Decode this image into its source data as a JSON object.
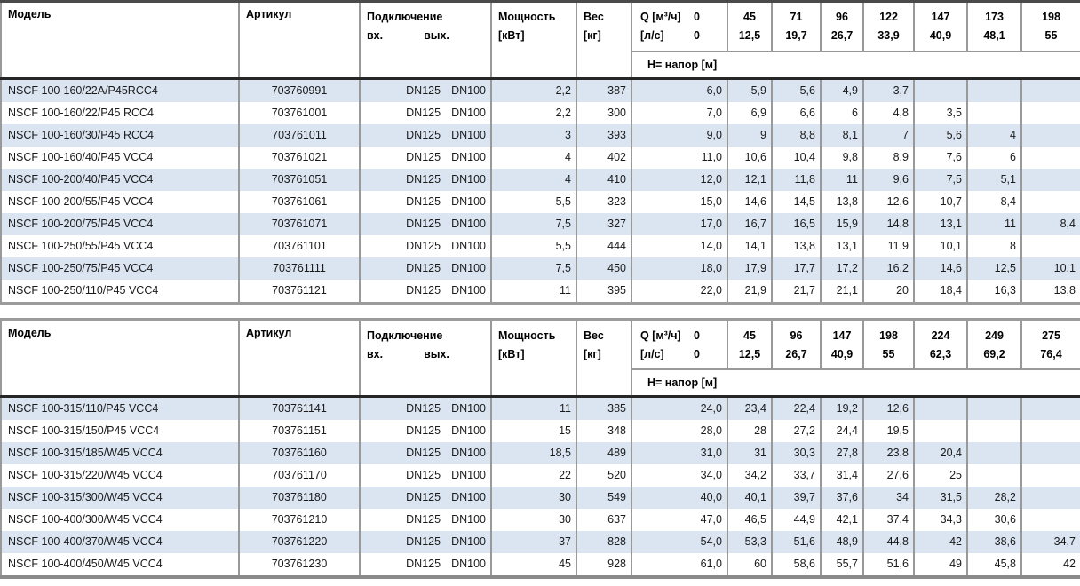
{
  "colors": {
    "row_stripe": "#dbe5f1",
    "grid_line": "#999999",
    "header_separator": "#262626",
    "table_frame": "#9b9b9b",
    "text": "#1a1a1a"
  },
  "tables": [
    {
      "headers": {
        "model": "Модель",
        "article": "Артикул",
        "connection": "Подключение",
        "conn_in": "вх.",
        "conn_out": "вых.",
        "power_line1": "Мощность",
        "power_line2": "[кВт]",
        "weight_line1": "Вес",
        "weight_line2": "[кг]",
        "q_row1_label": "Q [м³/ч]",
        "q_row1_value": "0",
        "q_row2_label": "[л/с]",
        "q_row2_value": "0",
        "head_label": "H= напор [м]",
        "flow_points": [
          {
            "m3h": "45",
            "ls": "12,5"
          },
          {
            "m3h": "71",
            "ls": "19,7"
          },
          {
            "m3h": "96",
            "ls": "26,7"
          },
          {
            "m3h": "122",
            "ls": "33,9"
          },
          {
            "m3h": "147",
            "ls": "40,9"
          },
          {
            "m3h": "173",
            "ls": "48,1"
          },
          {
            "m3h": "198",
            "ls": "55"
          }
        ]
      },
      "rows": [
        {
          "model": "NSCF 100-160/22A/P45RCC4",
          "article": "703760991",
          "inlet": "DN125",
          "outlet": "DN100",
          "power": "2,2",
          "weight": "387",
          "head": [
            "6,0",
            "5,9",
            "5,6",
            "4,9",
            "3,7",
            "",
            "",
            ""
          ]
        },
        {
          "model": "NSCF 100-160/22/P45 RCC4",
          "article": "703761001",
          "inlet": "DN125",
          "outlet": "DN100",
          "power": "2,2",
          "weight": "300",
          "head": [
            "7,0",
            "6,9",
            "6,6",
            "6",
            "4,8",
            "3,5",
            "",
            ""
          ]
        },
        {
          "model": "NSCF 100-160/30/P45 RCC4",
          "article": "703761011",
          "inlet": "DN125",
          "outlet": "DN100",
          "power": "3",
          "weight": "393",
          "head": [
            "9,0",
            "9",
            "8,8",
            "8,1",
            "7",
            "5,6",
            "4",
            ""
          ]
        },
        {
          "model": "NSCF 100-160/40/P45 VCC4",
          "article": "703761021",
          "inlet": "DN125",
          "outlet": "DN100",
          "power": "4",
          "weight": "402",
          "head": [
            "11,0",
            "10,6",
            "10,4",
            "9,8",
            "8,9",
            "7,6",
            "6",
            ""
          ]
        },
        {
          "model": "NSCF 100-200/40/P45 VCC4",
          "article": "703761051",
          "inlet": "DN125",
          "outlet": "DN100",
          "power": "4",
          "weight": "410",
          "head": [
            "12,0",
            "12,1",
            "11,8",
            "11",
            "9,6",
            "7,5",
            "5,1",
            ""
          ]
        },
        {
          "model": "NSCF 100-200/55/P45 VCC4",
          "article": "703761061",
          "inlet": "DN125",
          "outlet": "DN100",
          "power": "5,5",
          "weight": "323",
          "head": [
            "15,0",
            "14,6",
            "14,5",
            "13,8",
            "12,6",
            "10,7",
            "8,4",
            ""
          ]
        },
        {
          "model": "NSCF 100-200/75/P45 VCC4",
          "article": "703761071",
          "inlet": "DN125",
          "outlet": "DN100",
          "power": "7,5",
          "weight": "327",
          "head": [
            "17,0",
            "16,7",
            "16,5",
            "15,9",
            "14,8",
            "13,1",
            "11",
            "8,4"
          ]
        },
        {
          "model": "NSCF 100-250/55/P45 VCC4",
          "article": "703761101",
          "inlet": "DN125",
          "outlet": "DN100",
          "power": "5,5",
          "weight": "444",
          "head": [
            "14,0",
            "14,1",
            "13,8",
            "13,1",
            "11,9",
            "10,1",
            "8",
            ""
          ]
        },
        {
          "model": "NSCF 100-250/75/P45 VCC4",
          "article": "703761111",
          "inlet": "DN125",
          "outlet": "DN100",
          "power": "7,5",
          "weight": "450",
          "head": [
            "18,0",
            "17,9",
            "17,7",
            "17,2",
            "16,2",
            "14,6",
            "12,5",
            "10,1"
          ]
        },
        {
          "model": "NSCF 100-250/110/P45 VCC4",
          "article": "703761121",
          "inlet": "DN125",
          "outlet": "DN100",
          "power": "11",
          "weight": "395",
          "head": [
            "22,0",
            "21,9",
            "21,7",
            "21,1",
            "20",
            "18,4",
            "16,3",
            "13,8"
          ]
        }
      ]
    },
    {
      "headers": {
        "model": "Модель",
        "article": "Артикул",
        "connection": "Подключение",
        "conn_in": "вх.",
        "conn_out": "вых.",
        "power_line1": "Мощность",
        "power_line2": "[кВт]",
        "weight_line1": "Вес",
        "weight_line2": "[кг]",
        "q_row1_label": "Q [м³/ч]",
        "q_row1_value": "0",
        "q_row2_label": "[л/с]",
        "q_row2_value": "0",
        "head_label": "H= напор [м]",
        "flow_points": [
          {
            "m3h": "45",
            "ls": "12,5"
          },
          {
            "m3h": "96",
            "ls": "26,7"
          },
          {
            "m3h": "147",
            "ls": "40,9"
          },
          {
            "m3h": "198",
            "ls": "55"
          },
          {
            "m3h": "224",
            "ls": "62,3"
          },
          {
            "m3h": "249",
            "ls": "69,2"
          },
          {
            "m3h": "275",
            "ls": "76,4"
          }
        ]
      },
      "rows": [
        {
          "model": "NSCF 100-315/110/P45 VCC4",
          "article": "703761141",
          "inlet": "DN125",
          "outlet": "DN100",
          "power": "11",
          "weight": "385",
          "head": [
            "24,0",
            "23,4",
            "22,4",
            "19,2",
            "12,6",
            "",
            "",
            ""
          ]
        },
        {
          "model": "NSCF 100-315/150/P45 VCC4",
          "article": "703761151",
          "inlet": "DN125",
          "outlet": "DN100",
          "power": "15",
          "weight": "348",
          "head": [
            "28,0",
            "28",
            "27,2",
            "24,4",
            "19,5",
            "",
            "",
            ""
          ]
        },
        {
          "model": "NSCF 100-315/185/W45 VCC4",
          "article": "703761160",
          "inlet": "DN125",
          "outlet": "DN100",
          "power": "18,5",
          "weight": "489",
          "head": [
            "31,0",
            "31",
            "30,3",
            "27,8",
            "23,8",
            "20,4",
            "",
            ""
          ]
        },
        {
          "model": "NSCF 100-315/220/W45 VCC4",
          "article": "703761170",
          "inlet": "DN125",
          "outlet": "DN100",
          "power": "22",
          "weight": "520",
          "head": [
            "34,0",
            "34,2",
            "33,7",
            "31,4",
            "27,6",
            "25",
            "",
            ""
          ]
        },
        {
          "model": "NSCF 100-315/300/W45 VCC4",
          "article": "703761180",
          "inlet": "DN125",
          "outlet": "DN100",
          "power": "30",
          "weight": "549",
          "head": [
            "40,0",
            "40,1",
            "39,7",
            "37,6",
            "34",
            "31,5",
            "28,2",
            ""
          ]
        },
        {
          "model": "NSCF 100-400/300/W45 VCC4",
          "article": "703761210",
          "inlet": "DN125",
          "outlet": "DN100",
          "power": "30",
          "weight": "637",
          "head": [
            "47,0",
            "46,5",
            "44,9",
            "42,1",
            "37,4",
            "34,3",
            "30,6",
            ""
          ]
        },
        {
          "model": "NSCF 100-400/370/W45 VCC4",
          "article": "703761220",
          "inlet": "DN125",
          "outlet": "DN100",
          "power": "37",
          "weight": "828",
          "head": [
            "54,0",
            "53,3",
            "51,6",
            "48,9",
            "44,8",
            "42",
            "38,6",
            "34,7"
          ]
        },
        {
          "model": "NSCF 100-400/450/W45 VCC4",
          "article": "703761230",
          "inlet": "DN125",
          "outlet": "DN100",
          "power": "45",
          "weight": "928",
          "head": [
            "61,0",
            "60",
            "58,6",
            "55,7",
            "51,6",
            "49",
            "45,8",
            "42"
          ]
        }
      ]
    }
  ]
}
